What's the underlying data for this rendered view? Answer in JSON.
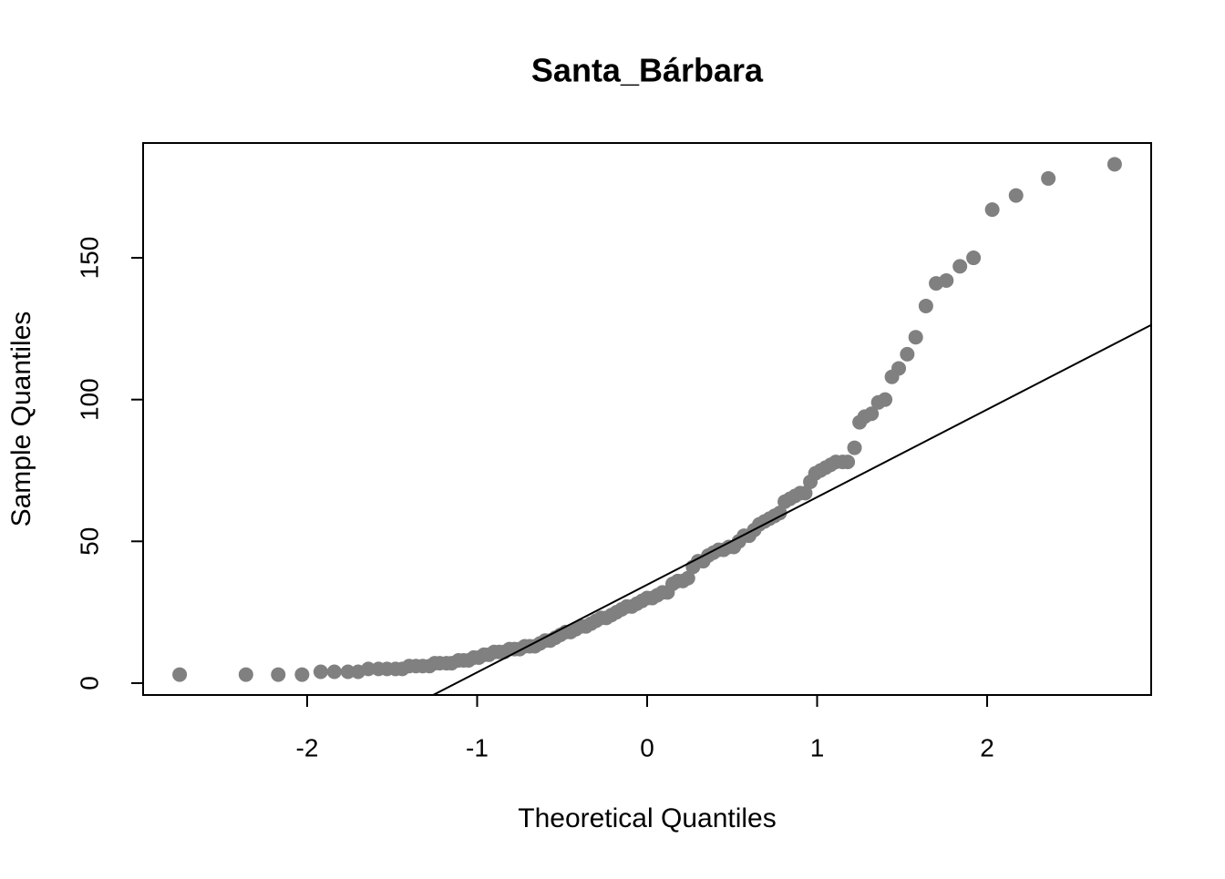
{
  "chart_data": {
    "type": "scatter",
    "title": "Santa_Bárbara",
    "x_label": "Theoretical Quantiles",
    "y_label": "Sample Quantiles",
    "xlim": [
      -2.965,
      2.965
    ],
    "ylim": [
      -4.2,
      190.5
    ],
    "xticks": [
      -2,
      -1,
      0,
      1,
      2
    ],
    "yticks": [
      0,
      50,
      100,
      150
    ],
    "color": "#808080",
    "reference_line": {
      "intercept": 34.7,
      "slope": 30.9,
      "color": "#000000"
    },
    "x": [
      -2.75,
      -2.36,
      -2.17,
      -2.03,
      -1.92,
      -1.84,
      -1.76,
      -1.7,
      -1.64,
      -1.58,
      -1.53,
      -1.48,
      -1.44,
      -1.4,
      -1.36,
      -1.32,
      -1.28,
      -1.25,
      -1.22,
      -1.18,
      -1.15,
      -1.11,
      -1.08,
      -1.05,
      -1.02,
      -0.99,
      -0.96,
      -0.93,
      -0.9,
      -0.87,
      -0.84,
      -0.81,
      -0.78,
      -0.75,
      -0.72,
      -0.69,
      -0.66,
      -0.63,
      -0.6,
      -0.57,
      -0.54,
      -0.51,
      -0.48,
      -0.45,
      -0.42,
      -0.39,
      -0.36,
      -0.33,
      -0.3,
      -0.27,
      -0.24,
      -0.21,
      -0.18,
      -0.15,
      -0.12,
      -0.09,
      -0.06,
      -0.03,
      0,
      0.03,
      0.06,
      0.09,
      0.12,
      0.15,
      0.18,
      0.21,
      0.24,
      0.27,
      0.3,
      0.33,
      0.36,
      0.39,
      0.42,
      0.45,
      0.48,
      0.51,
      0.54,
      0.57,
      0.6,
      0.63,
      0.66,
      0.69,
      0.72,
      0.75,
      0.78,
      0.81,
      0.84,
      0.87,
      0.9,
      0.93,
      0.96,
      0.99,
      1.02,
      1.05,
      1.08,
      1.11,
      1.15,
      1.18,
      1.22,
      1.25,
      1.28,
      1.32,
      1.36,
      1.4,
      1.44,
      1.48,
      1.53,
      1.58,
      1.64,
      1.7,
      1.76,
      1.84,
      1.92,
      2.03,
      2.17,
      2.36,
      2.75
    ],
    "values": [
      3,
      3,
      3,
      3,
      4,
      4,
      4,
      4,
      5,
      5,
      5,
      5,
      5,
      6,
      6,
      6,
      6,
      7,
      7,
      7,
      7,
      8,
      8,
      8,
      9,
      9,
      10,
      10,
      11,
      11,
      11,
      12,
      12,
      12,
      13,
      13,
      13,
      14,
      15,
      15,
      16,
      17,
      18,
      18,
      19,
      20,
      20,
      21,
      22,
      23,
      23,
      24,
      25,
      26,
      27,
      27,
      28,
      29,
      30,
      30,
      31,
      32,
      32,
      35,
      36,
      36,
      37,
      41,
      43,
      43,
      45,
      46,
      47,
      47,
      48,
      48,
      50,
      52,
      52,
      54,
      56,
      57,
      58,
      59,
      60,
      64,
      65,
      66,
      67,
      67,
      71,
      74,
      75,
      76,
      77,
      78,
      78,
      78,
      83,
      92,
      94,
      95,
      99,
      100,
      108,
      111,
      116,
      122,
      133,
      141,
      142,
      147,
      150,
      167,
      172,
      178,
      183
    ]
  }
}
